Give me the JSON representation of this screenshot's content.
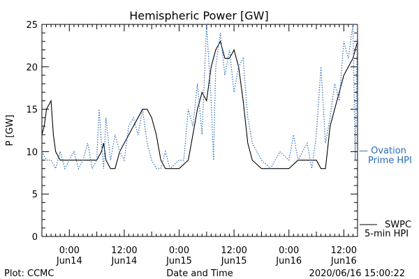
{
  "chart_data": {
    "type": "line",
    "title": "Hemispheric Power [GW]",
    "ylabel": "P [GW]",
    "xlabel": "Date and Time",
    "ylim": [
      0,
      25
    ],
    "yticks": [
      0,
      5,
      10,
      15,
      20,
      25
    ],
    "xlim": [
      "2020-06-13 18:00",
      "2020-06-16 15:00"
    ],
    "xticks": [
      {
        "x": "2020-06-14 00:00",
        "time": "0:00",
        "date": "Jun14"
      },
      {
        "x": "2020-06-14 12:00",
        "time": "12:00",
        "date": "Jun14"
      },
      {
        "x": "2020-06-15 00:00",
        "time": "0:00",
        "date": "Jun15"
      },
      {
        "x": "2020-06-15 12:00",
        "time": "12:00",
        "date": "Jun15"
      },
      {
        "x": "2020-06-16 00:00",
        "time": "0:00",
        "date": "Jun16"
      },
      {
        "x": "2020-06-16 12:00",
        "time": "12:00",
        "date": "Jun16"
      }
    ],
    "grid": false,
    "legend_position": "right",
    "series": [
      {
        "name_lines": [
          "SWPC",
          "5-min HPI"
        ],
        "style": "solid",
        "color": "#000000",
        "x": [
          "2020-06-13 18:00",
          "2020-06-13 18:30",
          "2020-06-13 19:00",
          "2020-06-13 20:00",
          "2020-06-13 20:30",
          "2020-06-13 21:00",
          "2020-06-13 22:00",
          "2020-06-13 23:00",
          "2020-06-14 00:00",
          "2020-06-14 02:00",
          "2020-06-14 04:00",
          "2020-06-14 06:00",
          "2020-06-14 07:00",
          "2020-06-14 07:30",
          "2020-06-14 08:00",
          "2020-06-14 09:00",
          "2020-06-14 10:00",
          "2020-06-14 11:00",
          "2020-06-14 12:00",
          "2020-06-14 13:00",
          "2020-06-14 14:00",
          "2020-06-14 15:00",
          "2020-06-14 16:00",
          "2020-06-14 17:00",
          "2020-06-14 18:00",
          "2020-06-14 19:00",
          "2020-06-14 20:00",
          "2020-06-14 21:00",
          "2020-06-14 22:00",
          "2020-06-14 23:00",
          "2020-06-15 00:00",
          "2020-06-15 02:00",
          "2020-06-15 03:00",
          "2020-06-15 04:00",
          "2020-06-15 05:00",
          "2020-06-15 06:00",
          "2020-06-15 07:00",
          "2020-06-15 08:00",
          "2020-06-15 09:00",
          "2020-06-15 10:00",
          "2020-06-15 11:00",
          "2020-06-15 12:00",
          "2020-06-15 13:00",
          "2020-06-15 14:00",
          "2020-06-15 15:00",
          "2020-06-15 16:00",
          "2020-06-15 18:00",
          "2020-06-15 20:00",
          "2020-06-15 22:00",
          "2020-06-16 00:00",
          "2020-06-16 02:00",
          "2020-06-16 04:00",
          "2020-06-16 06:00",
          "2020-06-16 07:00",
          "2020-06-16 08:00",
          "2020-06-16 09:00",
          "2020-06-16 10:00",
          "2020-06-16 11:00",
          "2020-06-16 12:00",
          "2020-06-16 13:00",
          "2020-06-16 14:00",
          "2020-06-16 15:00"
        ],
        "y": [
          12,
          13,
          15,
          16,
          12,
          10,
          9,
          9,
          9,
          9,
          9,
          9,
          10,
          11,
          9,
          8,
          8,
          10,
          11,
          12,
          13,
          14,
          15,
          15,
          14,
          12,
          9,
          8,
          8,
          8,
          8,
          9,
          12,
          15,
          17,
          16,
          20,
          22,
          23,
          21,
          21,
          22,
          20,
          16,
          11,
          9,
          8,
          8,
          8,
          8,
          9,
          9,
          9,
          8,
          8,
          13,
          15,
          17,
          19,
          20,
          21,
          23
        ]
      },
      {
        "name_lines": [
          "— Ovation",
          "Prime HPI"
        ],
        "style": "dotted",
        "color": "#2a6bb5",
        "x": [
          "2020-06-13 18:00",
          "2020-06-13 19:00",
          "2020-06-13 20:00",
          "2020-06-13 21:00",
          "2020-06-13 22:00",
          "2020-06-13 23:00",
          "2020-06-14 00:00",
          "2020-06-14 01:00",
          "2020-06-14 02:00",
          "2020-06-14 03:00",
          "2020-06-14 04:00",
          "2020-06-14 05:00",
          "2020-06-14 06:00",
          "2020-06-14 06:30",
          "2020-06-14 07:00",
          "2020-06-14 07:30",
          "2020-06-14 08:00",
          "2020-06-14 09:00",
          "2020-06-14 10:00",
          "2020-06-14 11:00",
          "2020-06-14 12:00",
          "2020-06-14 13:00",
          "2020-06-14 14:00",
          "2020-06-14 15:00",
          "2020-06-14 16:00",
          "2020-06-14 17:00",
          "2020-06-14 18:00",
          "2020-06-14 19:00",
          "2020-06-14 20:00",
          "2020-06-14 21:00",
          "2020-06-14 22:00",
          "2020-06-15 00:00",
          "2020-06-15 01:00",
          "2020-06-15 02:00",
          "2020-06-15 03:00",
          "2020-06-15 04:00",
          "2020-06-15 05:00",
          "2020-06-15 06:00",
          "2020-06-15 07:00",
          "2020-06-15 07:30",
          "2020-06-15 08:00",
          "2020-06-15 09:00",
          "2020-06-15 10:00",
          "2020-06-15 11:00",
          "2020-06-15 12:00",
          "2020-06-15 13:00",
          "2020-06-15 14:00",
          "2020-06-15 15:00",
          "2020-06-15 16:00",
          "2020-06-15 18:00",
          "2020-06-15 20:00",
          "2020-06-15 22:00",
          "2020-06-16 00:00",
          "2020-06-16 01:00",
          "2020-06-16 02:00",
          "2020-06-16 04:00",
          "2020-06-16 05:00",
          "2020-06-16 06:00",
          "2020-06-16 07:00",
          "2020-06-16 08:00",
          "2020-06-16 09:00",
          "2020-06-16 10:00",
          "2020-06-16 11:00",
          "2020-06-16 12:00",
          "2020-06-16 13:00",
          "2020-06-16 14:00",
          "2020-06-16 14:30",
          "2020-06-16 15:00"
        ],
        "y": [
          10,
          9,
          9,
          8,
          10,
          8,
          9,
          10,
          8,
          9,
          11,
          8,
          9,
          15,
          11,
          8,
          14,
          9,
          12,
          10,
          9,
          13,
          14,
          12,
          15,
          11,
          9,
          8,
          8,
          10,
          8,
          9,
          9,
          15,
          13,
          18,
          12,
          25,
          16,
          9,
          20,
          24,
          19,
          22,
          17,
          20,
          21,
          14,
          11,
          9,
          8,
          10,
          9,
          12,
          9,
          11,
          8,
          12,
          20,
          11,
          14,
          18,
          16,
          23,
          21,
          25,
          9,
          25
        ]
      }
    ]
  },
  "footer": {
    "plot_credit": "Plot: CCMC",
    "timestamp": "2020/06/16 15:00:22"
  }
}
